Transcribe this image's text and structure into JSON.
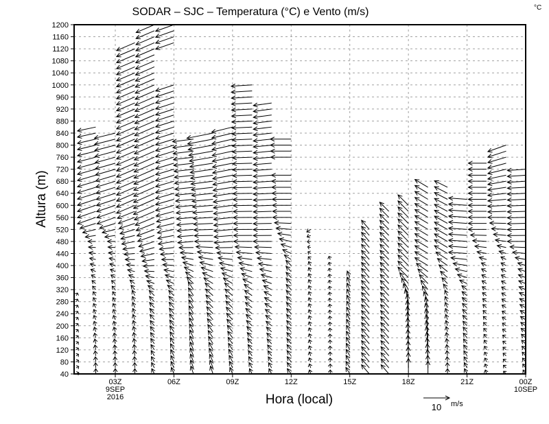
{
  "chart_data": {
    "type": "vector",
    "title": "SODAR – SJC – Temperatura (°C) e Vento (m/s)",
    "corner_unit": "°C",
    "xlabel": "Hora (local)",
    "ylabel": "Altura (m)",
    "ylim": [
      40,
      1200
    ],
    "xlim_hours": [
      1,
      24
    ],
    "y_ticks": [
      "40",
      "80",
      "120",
      "160",
      "200",
      "240",
      "280",
      "320",
      "360",
      "400",
      "440",
      "480",
      "520",
      "560",
      "600",
      "640",
      "680",
      "720",
      "760",
      "800",
      "840",
      "880",
      "920",
      "960",
      "1000",
      "1040",
      "1080",
      "1120",
      "1160",
      "1200"
    ],
    "x_ticks": [
      {
        "hour": 3,
        "label": "03Z",
        "sub": [
          "9SEP",
          "2016"
        ]
      },
      {
        "hour": 6,
        "label": "06Z",
        "sub": []
      },
      {
        "hour": 9,
        "label": "09Z",
        "sub": []
      },
      {
        "hour": 12,
        "label": "12Z",
        "sub": []
      },
      {
        "hour": 15,
        "label": "15Z",
        "sub": []
      },
      {
        "hour": 18,
        "label": "18Z",
        "sub": []
      },
      {
        "hour": 21,
        "label": "21Z",
        "sub": []
      },
      {
        "hour": 24,
        "label": "00Z",
        "sub": [
          "10SEP"
        ]
      }
    ],
    "grid": true,
    "reference_vector": {
      "value": 10,
      "label": "10",
      "unit": "m/s"
    },
    "level_step_m": 20,
    "columns": [
      {
        "hour": 1,
        "segments": [
          [
            40,
            300
          ]
        ],
        "profile": [
          [
            40,
            1,
            0.5
          ],
          [
            300,
            0.5,
            1
          ]
        ]
      },
      {
        "hour": 2,
        "segments": [
          [
            40,
            860
          ]
        ],
        "profile": [
          [
            40,
            0,
            2
          ],
          [
            300,
            -1,
            1.5
          ],
          [
            480,
            -3,
            0
          ],
          [
            560,
            -7,
            -2.5
          ],
          [
            860,
            -7,
            -1.5
          ]
        ]
      },
      {
        "hour": 3,
        "segments": [
          [
            40,
            840
          ]
        ],
        "profile": [
          [
            40,
            0,
            2
          ],
          [
            300,
            -1,
            1.5
          ],
          [
            480,
            -3,
            0
          ],
          [
            560,
            -7,
            -2.5
          ],
          [
            840,
            -8,
            -2
          ]
        ]
      },
      {
        "hour": 4,
        "segments": [
          [
            40,
            1140
          ]
        ],
        "profile": [
          [
            40,
            0,
            2
          ],
          [
            300,
            -1,
            2
          ],
          [
            480,
            -5,
            -1
          ],
          [
            600,
            -7,
            -3
          ],
          [
            1140,
            -7,
            -3
          ]
        ]
      },
      {
        "hour": 5,
        "segments": [
          [
            40,
            1200
          ]
        ],
        "profile": [
          [
            40,
            -1,
            2
          ],
          [
            300,
            -2,
            2
          ],
          [
            480,
            -6,
            -2
          ],
          [
            600,
            -8,
            -3.5
          ],
          [
            1200,
            -7,
            -3
          ]
        ]
      },
      {
        "hour": 6,
        "segments": [
          [
            40,
            1000
          ],
          [
            1140,
            1200
          ]
        ],
        "profile": [
          [
            40,
            -1,
            2.5
          ],
          [
            300,
            -2,
            2
          ],
          [
            480,
            -6,
            -1
          ],
          [
            600,
            -7,
            -2
          ],
          [
            1200,
            -7,
            -2.5
          ]
        ]
      },
      {
        "hour": 7,
        "segments": [
          [
            40,
            820
          ]
        ],
        "profile": [
          [
            40,
            -1,
            3
          ],
          [
            320,
            -2,
            3
          ],
          [
            480,
            -6,
            -0.5
          ],
          [
            820,
            -8,
            -1
          ]
        ]
      },
      {
        "hour": 8,
        "segments": [
          [
            40,
            840
          ]
        ],
        "profile": [
          [
            40,
            -1,
            3
          ],
          [
            320,
            -3,
            2.5
          ],
          [
            480,
            -7,
            0
          ],
          [
            760,
            -9,
            -1.5
          ],
          [
            840,
            -10,
            -2
          ]
        ]
      },
      {
        "hour": 9,
        "segments": [
          [
            40,
            860
          ]
        ],
        "profile": [
          [
            40,
            -1,
            2.5
          ],
          [
            320,
            -3,
            2.5
          ],
          [
            480,
            -7,
            -0.5
          ],
          [
            860,
            -8,
            -2
          ]
        ]
      },
      {
        "hour": 10,
        "segments": [
          [
            40,
            1000
          ]
        ],
        "profile": [
          [
            40,
            -1,
            2
          ],
          [
            320,
            -3,
            2
          ],
          [
            480,
            -7,
            0
          ],
          [
            1000,
            -8,
            -0.5
          ]
        ]
      },
      {
        "hour": 11,
        "segments": [
          [
            40,
            940
          ]
        ],
        "profile": [
          [
            40,
            -1,
            2
          ],
          [
            320,
            -3,
            1.5
          ],
          [
            480,
            -7,
            0
          ],
          [
            940,
            -7,
            -1
          ]
        ]
      },
      {
        "hour": 12,
        "segments": [
          [
            40,
            700
          ],
          [
            760,
            820
          ]
        ],
        "profile": [
          [
            40,
            -1.5,
            2
          ],
          [
            400,
            -2,
            2
          ],
          [
            560,
            -7,
            0
          ],
          [
            820,
            -8,
            0
          ]
        ]
      },
      {
        "hour": 13,
        "segments": [
          [
            40,
            520
          ]
        ],
        "profile": [
          [
            40,
            -0.5,
            1.5
          ],
          [
            400,
            -0.8,
            1.5
          ],
          [
            520,
            -1.5,
            -1
          ]
        ]
      },
      {
        "hour": 14,
        "segments": [
          [
            40,
            380
          ],
          [
            400,
            420
          ]
        ],
        "profile": [
          [
            40,
            0,
            1.5
          ],
          [
            420,
            -0.5,
            1.2
          ]
        ]
      },
      {
        "hour": 15,
        "segments": [
          [
            40,
            360
          ]
        ],
        "profile": [
          [
            40,
            -1.5,
            2.5
          ],
          [
            360,
            -1,
            2.5
          ]
        ]
      },
      {
        "hour": 16,
        "segments": [
          [
            40,
            520
          ]
        ],
        "profile": [
          [
            40,
            -3,
            3.5
          ],
          [
            520,
            -3,
            3.5
          ]
        ]
      },
      {
        "hour": 17,
        "segments": [
          [
            40,
            580
          ]
        ],
        "profile": [
          [
            40,
            -3,
            3.5
          ],
          [
            580,
            -3.5,
            3.5
          ]
        ]
      },
      {
        "hour": 18,
        "segments": [
          [
            40,
            600
          ]
        ],
        "profile": [
          [
            40,
            0,
            6
          ],
          [
            260,
            -0.5,
            5
          ],
          [
            360,
            -4,
            4
          ],
          [
            600,
            -4,
            4
          ]
        ]
      },
      {
        "hour": 19,
        "segments": [
          [
            40,
            660
          ]
        ],
        "profile": [
          [
            40,
            0,
            5
          ],
          [
            260,
            -1,
            4
          ],
          [
            400,
            -5,
            3
          ],
          [
            660,
            -5,
            3
          ]
        ]
      },
      {
        "hour": 20,
        "segments": [
          [
            40,
            660
          ]
        ],
        "profile": [
          [
            40,
            0,
            2
          ],
          [
            300,
            -1,
            2
          ],
          [
            440,
            -5,
            3
          ],
          [
            660,
            -5,
            2.5
          ]
        ]
      },
      {
        "hour": 21,
        "segments": [
          [
            40,
            620
          ]
        ],
        "profile": [
          [
            40,
            -1,
            2
          ],
          [
            320,
            -2,
            1.5
          ],
          [
            440,
            -7,
            0.5
          ],
          [
            620,
            -7,
            0.5
          ]
        ]
      },
      {
        "hour": 22,
        "segments": [
          [
            40,
            740
          ]
        ],
        "profile": [
          [
            40,
            -0.5,
            1.5
          ],
          [
            400,
            -2,
            1
          ],
          [
            520,
            -7,
            0
          ],
          [
            740,
            -7,
            0
          ]
        ]
      },
      {
        "hour": 23,
        "segments": [
          [
            40,
            800
          ]
        ],
        "profile": [
          [
            40,
            -1,
            1
          ],
          [
            420,
            -2,
            1
          ],
          [
            560,
            -7,
            0
          ],
          [
            800,
            -7,
            -2.5
          ]
        ]
      },
      {
        "hour": 24,
        "segments": [
          [
            40,
            720
          ]
        ],
        "profile": [
          [
            40,
            -1,
            1.5
          ],
          [
            400,
            -3,
            1
          ],
          [
            480,
            -7,
            0
          ],
          [
            720,
            -7,
            -0.5
          ]
        ]
      }
    ]
  }
}
